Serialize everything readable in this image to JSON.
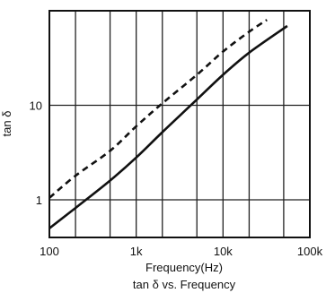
{
  "chart_data": {
    "type": "line",
    "title": "tan δ vs. Frequency",
    "xlabel": "Frequency(Hz)",
    "ylabel": "tan δ",
    "xscale": "log",
    "yscale": "log",
    "xlim": [
      100,
      100000
    ],
    "ylim": [
      0.4,
      100
    ],
    "grid": true,
    "legend": "none",
    "x_ticks": [
      {
        "value": 100,
        "label": "100"
      },
      {
        "value": 1000,
        "label": "1k"
      },
      {
        "value": 10000,
        "label": "10k"
      },
      {
        "value": 100000,
        "label": "100k"
      }
    ],
    "y_ticks": [
      {
        "value": 1,
        "label": "1"
      },
      {
        "value": 10,
        "label": "10"
      }
    ],
    "series": [
      {
        "style": "solid",
        "x": [
          100,
          200,
          500,
          1000,
          2000,
          5000,
          10000,
          20000,
          55000
        ],
        "y": [
          0.5,
          0.82,
          1.6,
          2.8,
          5.2,
          11.5,
          21,
          36,
          69
        ]
      },
      {
        "style": "dashed",
        "x": [
          100,
          200,
          500,
          1000,
          2000,
          5000,
          10000,
          20000,
          32000
        ],
        "y": [
          1.05,
          1.8,
          3.3,
          6.0,
          10.5,
          21,
          37,
          60,
          80
        ]
      }
    ],
    "colors": {
      "line": "#111111",
      "grid": "#222222",
      "frame": "#111111"
    }
  }
}
